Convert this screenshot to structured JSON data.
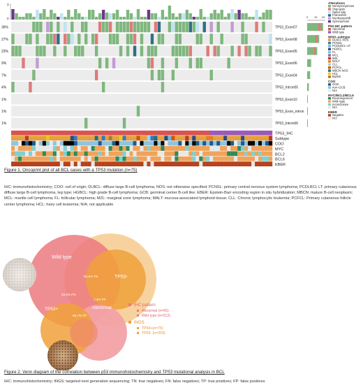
{
  "figure1": {
    "caption_prefix": "Figure 1. Oncoprint plot of all BCL cases with a ",
    "caption_gene": "TP53",
    "caption_suffix": " mutation (n=75)",
    "top_axis_max": "3",
    "top_axis_min": "0",
    "rows": [
      {
        "pct": "36%",
        "label": "TP53_Exon07",
        "density": 0.55,
        "bar": 0.95
      },
      {
        "pct": "27%",
        "label": "TP53_Exon08",
        "density": 0.42,
        "bar": 0.72
      },
      {
        "pct": "23%",
        "label": "TP53_Exon05",
        "density": 0.36,
        "bar": 0.6
      },
      {
        "pct": "9%",
        "label": "TP53_Exon06",
        "density": 0.14,
        "bar": 0.24
      },
      {
        "pct": "7%",
        "label": "TP53_Exon04",
        "density": 0.11,
        "bar": 0.18
      },
      {
        "pct": "4%",
        "label": "TP53_Intron05",
        "density": 0.06,
        "bar": 0.1
      },
      {
        "pct": "1%",
        "label": "TP53_Exon10",
        "density": 0.015,
        "bar": 0.03
      },
      {
        "pct": "1%",
        "label": "TP53_Exon_intron",
        "density": 0.015,
        "bar": 0.03
      },
      {
        "pct": "1%",
        "label": "TP53_Intron06",
        "density": 0.015,
        "bar": 0.03
      }
    ],
    "side_axis_ticks": [
      "0",
      "10",
      "20"
    ],
    "annotation_tracks": [
      "TP53_IHC",
      "Subtype",
      "COO",
      "MYC",
      "BCL2",
      "BCL6",
      "EBER"
    ],
    "legend": {
      "alterations_title": "Alterations",
      "alterations": [
        {
          "label": "Nonsynonymous",
          "color": "#7fb77e"
        },
        {
          "label": "Stop-gain",
          "color": "#e07a7a"
        },
        {
          "label": "Splice-site",
          "color": "#bfe3f2"
        },
        {
          "label": "Frameshift",
          "color": "#2f6f86"
        },
        {
          "label": "Nonframeshift",
          "color": "#c39bd3"
        },
        {
          "label": "Synonymous",
          "color": "#6b3a8a"
        }
      ],
      "ihc_title": "P53 IHC pattern",
      "ihc": [
        {
          "label": "Abnormal",
          "color": "#d9534f"
        },
        {
          "label": "Wild type",
          "color": "#9b59b6"
        }
      ],
      "who_title": "WHO–subtype",
      "who": [
        {
          "label": "DLBCL NOS",
          "color": "#e6a03c"
        },
        {
          "label": "PCNSL",
          "color": "#3a78b8"
        },
        {
          "label": "PCDLBCL–LT",
          "color": "#6fb7d8"
        },
        {
          "label": "HGBCL",
          "color": "#2e4a7d"
        },
        {
          "label": "FL",
          "color": "#7cc6c0"
        },
        {
          "label": "MCL",
          "color": "#8e6bb5"
        },
        {
          "label": "MZL",
          "color": "#c0392b"
        },
        {
          "label": "MALT",
          "color": "#e67e22"
        },
        {
          "label": "CLL",
          "color": "#a3d0e5"
        },
        {
          "label": "PCFCL",
          "color": "#d35400"
        },
        {
          "label": "MBCN NOS",
          "color": "#1f6f8b"
        },
        {
          "label": "HCL",
          "color": "#f1c40f"
        },
        {
          "label": "Burkitt",
          "color": "#b87333"
        }
      ],
      "coo_title": "COO",
      "coo": [
        {
          "label": "GCB",
          "color": "#1f5a8b"
        },
        {
          "label": "non–GCB",
          "color": "#8fc3e0"
        },
        {
          "label": "N/A",
          "color": "#e8e8e8"
        }
      ],
      "myc_title": "MYC/BCL2/BCL6",
      "myc": [
        {
          "label": "Rearrangement",
          "color": "#2e8b57"
        },
        {
          "label": "Wild–type",
          "color": "#f0a35a"
        },
        {
          "label": "Inconclusive",
          "color": "#7fd0d0"
        },
        {
          "label": "N/A",
          "color": "#e8e8e8"
        }
      ],
      "eber_title": "EBER",
      "eber": [
        {
          "label": "Negative",
          "color": "#b5431f"
        },
        {
          "label": "N/A",
          "color": "#e8e8e8"
        }
      ]
    }
  },
  "abbreviations1": "IHC: immunohistochemistry; COO: cell of origin; DLBCL: diffuse large B-cell lymphoma; NOS: not otherwise specified; PCNSL: primary central nervous system lymphoma; PCDLBCL LT: primary cutaneous diffuse large B-cell lymphoma, leg type; HGBCL: high grade B-cell lymphoma; GCB: germinal center B-cell like; EBER: Epstein-Barr encoding region in situ hybridization; MBCN: mature B-cell neoplasm; MCL: mantle cell lymphoma; FL: follicular lymphoma; MZL: marginal zone lymphoma; MALT: mucosa-associated lymphoid tissue; CLL: Chronic lymphocytic leukemia; PCFCL: Primary cutaneous follicle center lymphoma; HCL: hairy cell leukemia; N/A: not applicable",
  "figure2": {
    "labels": {
      "wild_type": "Wild type",
      "tp53_minus": "TP53-",
      "tp53_plus": "TP53+",
      "abnormal": "Abnormal",
      "tn": "92,6% TN",
      "fn": "33,3% FN",
      "fp": "7,4% FP",
      "tp": "66,7% TP"
    },
    "legend": {
      "ihc_title": "IHC pattern",
      "abnormal": "Abnormal (n=65)",
      "wild_type": "Wild type (n=213)",
      "tngs_title": "tNGS",
      "tp53_plus": "TP53+(n=75)",
      "tp53_minus": "TP53- (n=203)"
    },
    "colors": {
      "pink": "#ec7a7f",
      "orange": "#f0a13a",
      "pink_light": "#f6b6b8",
      "orange_light": "#f7ce94"
    },
    "caption_prefix": "Figure 2. Venn diagram of the correlation between p53 immunohistochemistry and ",
    "caption_gene": "TP53",
    "caption_suffix": " mutational analysis in BCL"
  },
  "abbreviations2": "IHC: immunohistochemistry; tNGS: targeted next generation sequencing; TN: true negatives; FN: false negatives; TP: true positives; FP: false positives"
}
